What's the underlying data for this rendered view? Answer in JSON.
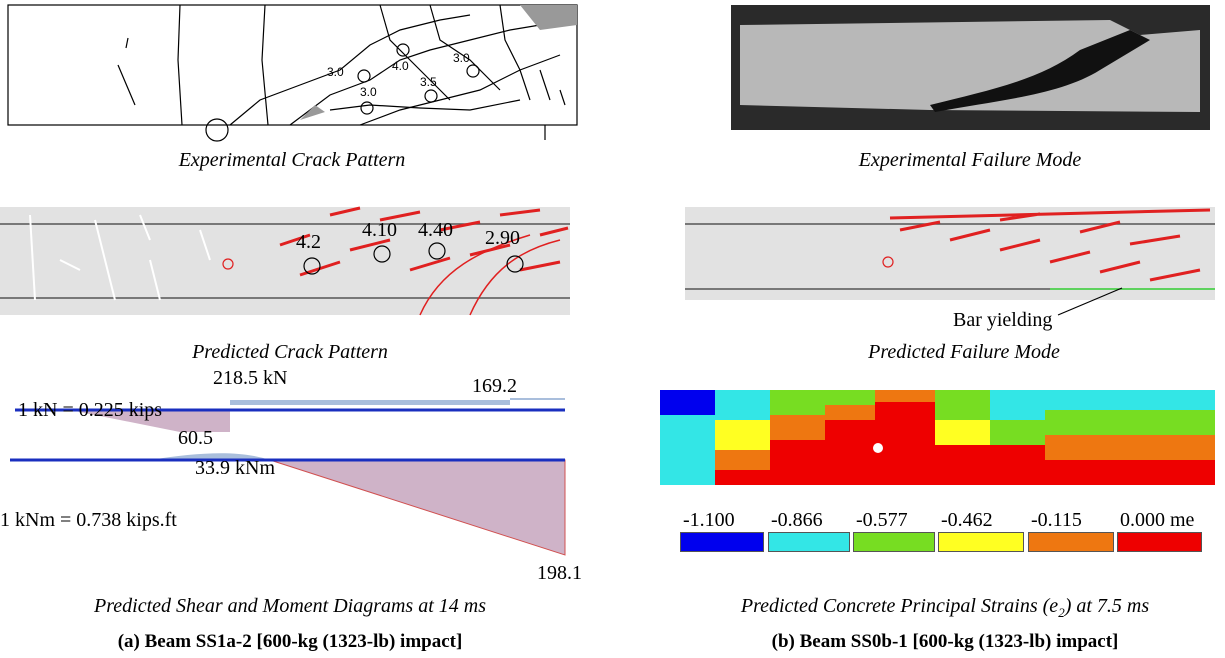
{
  "panel_a": {
    "crack_labels": [
      "3.0",
      "4.0",
      "3.0",
      "3.0",
      "3.5"
    ],
    "experimental_caption": "Experimental Crack Pattern",
    "predicted_labels": [
      "4.2",
      "4.10",
      "4.40",
      "2.90"
    ],
    "predicted_caption": "Predicted Crack Pattern",
    "shear_max": "218.5 kN",
    "shear_right": "169.2",
    "shear_conversion": "1 kN = 0.225 kips",
    "shear_min": "60.5",
    "moment_max": "33.9 kNm",
    "moment_conversion": "1 kNm = 0.738 kips.ft",
    "moment_right": "198.1",
    "diagram_caption": "Predicted Shear and Moment Diagrams at 14 ms",
    "title": "(a) Beam SS1a-2 [600-kg (1323-lb) impact]"
  },
  "panel_b": {
    "experimental_caption": "Experimental Failure Mode",
    "annotation": "Bar yielding",
    "predicted_caption": "Predicted Failure Mode",
    "legend": [
      {
        "label": "-1.100",
        "color": "#0000ee"
      },
      {
        "label": "-0.866",
        "color": "#33e6e6"
      },
      {
        "label": "-0.577",
        "color": "#77dd22"
      },
      {
        "label": "-0.462",
        "color": "#ffff22"
      },
      {
        "label": "-0.115",
        "color": "#ee7711"
      },
      {
        "label": "0.000 me",
        "color": "#ee0000"
      }
    ],
    "strain_caption_start": "Predicted Concrete Principal Strains (e",
    "strain_caption_sub": "2",
    "strain_caption_end": ") at 7.5 ms",
    "title": "(b) Beam SS0b-1 [600-kg (1323-lb) impact]"
  }
}
